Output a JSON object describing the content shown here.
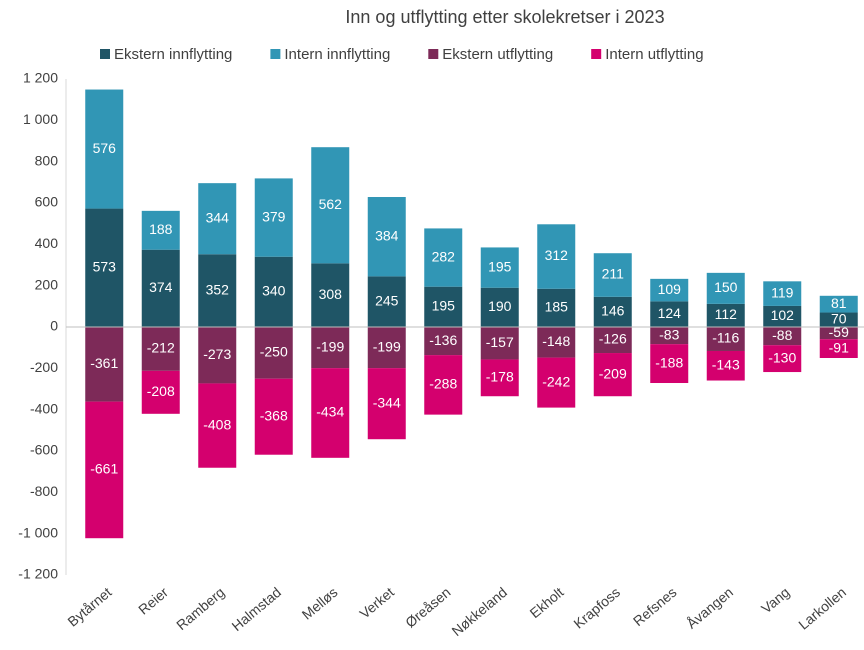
{
  "chart_data": {
    "type": "bar",
    "stacked": true,
    "title": "Inn og utflytting etter skolekretser i 2023",
    "categories": [
      "Bytårnet",
      "Reier",
      "Ramberg",
      "Halmstad",
      "Melløs",
      "Verket",
      "Øreåsen",
      "Nøkkeland",
      "Ekholt",
      "Krapfoss",
      "Refsnes",
      "Åvangen",
      "Vang",
      "Larkollen"
    ],
    "series": [
      {
        "name": "Ekstern innflytting",
        "color": "#1f5566",
        "values": [
          573,
          374,
          352,
          340,
          308,
          245,
          195,
          190,
          185,
          146,
          124,
          112,
          102,
          70
        ]
      },
      {
        "name": "Intern innflytting",
        "color": "#3196b5",
        "values": [
          576,
          188,
          344,
          379,
          562,
          384,
          282,
          195,
          312,
          211,
          109,
          150,
          119,
          81
        ]
      },
      {
        "name": "Ekstern utflytting",
        "color": "#7d2a58",
        "values": [
          -361,
          -212,
          -273,
          -250,
          -199,
          -199,
          -136,
          -157,
          -148,
          -126,
          -83,
          -116,
          -88,
          -59
        ]
      },
      {
        "name": "Intern utflytting",
        "color": "#d4006e",
        "values": [
          -661,
          -208,
          -408,
          -368,
          -434,
          -344,
          -288,
          -178,
          -242,
          -209,
          -188,
          -143,
          -130,
          -91
        ]
      }
    ],
    "ylim": [
      -1200,
      1200
    ],
    "yticks": [
      {
        "value": 1200,
        "label": "1 200"
      },
      {
        "value": 1000,
        "label": "1 000"
      },
      800,
      600,
      400,
      200,
      0,
      -200,
      -400,
      -600,
      -800,
      {
        "value": -1000,
        "label": "-1 000"
      },
      {
        "value": -1200,
        "label": "-1 200"
      }
    ],
    "grid": false,
    "legend": "top"
  }
}
